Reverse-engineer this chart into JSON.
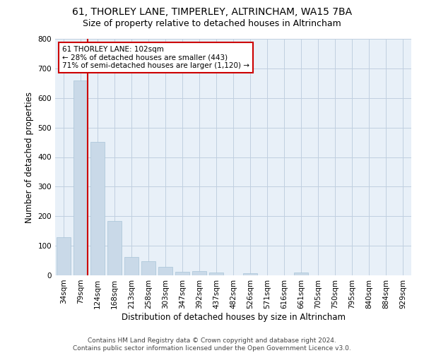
{
  "title1": "61, THORLEY LANE, TIMPERLEY, ALTRINCHAM, WA15 7BA",
  "title2": "Size of property relative to detached houses in Altrincham",
  "xlabel": "Distribution of detached houses by size in Altrincham",
  "ylabel": "Number of detached properties",
  "categories": [
    "34sqm",
    "79sqm",
    "124sqm",
    "168sqm",
    "213sqm",
    "258sqm",
    "303sqm",
    "347sqm",
    "392sqm",
    "437sqm",
    "482sqm",
    "526sqm",
    "571sqm",
    "616sqm",
    "661sqm",
    "705sqm",
    "750sqm",
    "795sqm",
    "840sqm",
    "884sqm",
    "929sqm"
  ],
  "values": [
    128,
    660,
    452,
    183,
    62,
    47,
    28,
    12,
    15,
    10,
    0,
    8,
    0,
    0,
    9,
    0,
    0,
    0,
    0,
    0,
    0
  ],
  "bar_color": "#c9d9e8",
  "bar_edge_color": "#a8c4d8",
  "vline_index": 1,
  "vline_color": "#cc0000",
  "annotation_text": "61 THORLEY LANE: 102sqm\n← 28% of detached houses are smaller (443)\n71% of semi-detached houses are larger (1,120) →",
  "annotation_box_color": "#ffffff",
  "annotation_box_edge": "#cc0000",
  "ylim": [
    0,
    800
  ],
  "yticks": [
    0,
    100,
    200,
    300,
    400,
    500,
    600,
    700,
    800
  ],
  "footer": "Contains HM Land Registry data © Crown copyright and database right 2024.\nContains public sector information licensed under the Open Government Licence v3.0.",
  "bg_color": "#ffffff",
  "plot_bg_color": "#e8f0f8",
  "grid_color": "#c0cfe0",
  "title1_fontsize": 10,
  "title2_fontsize": 9,
  "axis_label_fontsize": 8.5,
  "tick_fontsize": 7.5,
  "annotation_fontsize": 7.5,
  "footer_fontsize": 6.5
}
